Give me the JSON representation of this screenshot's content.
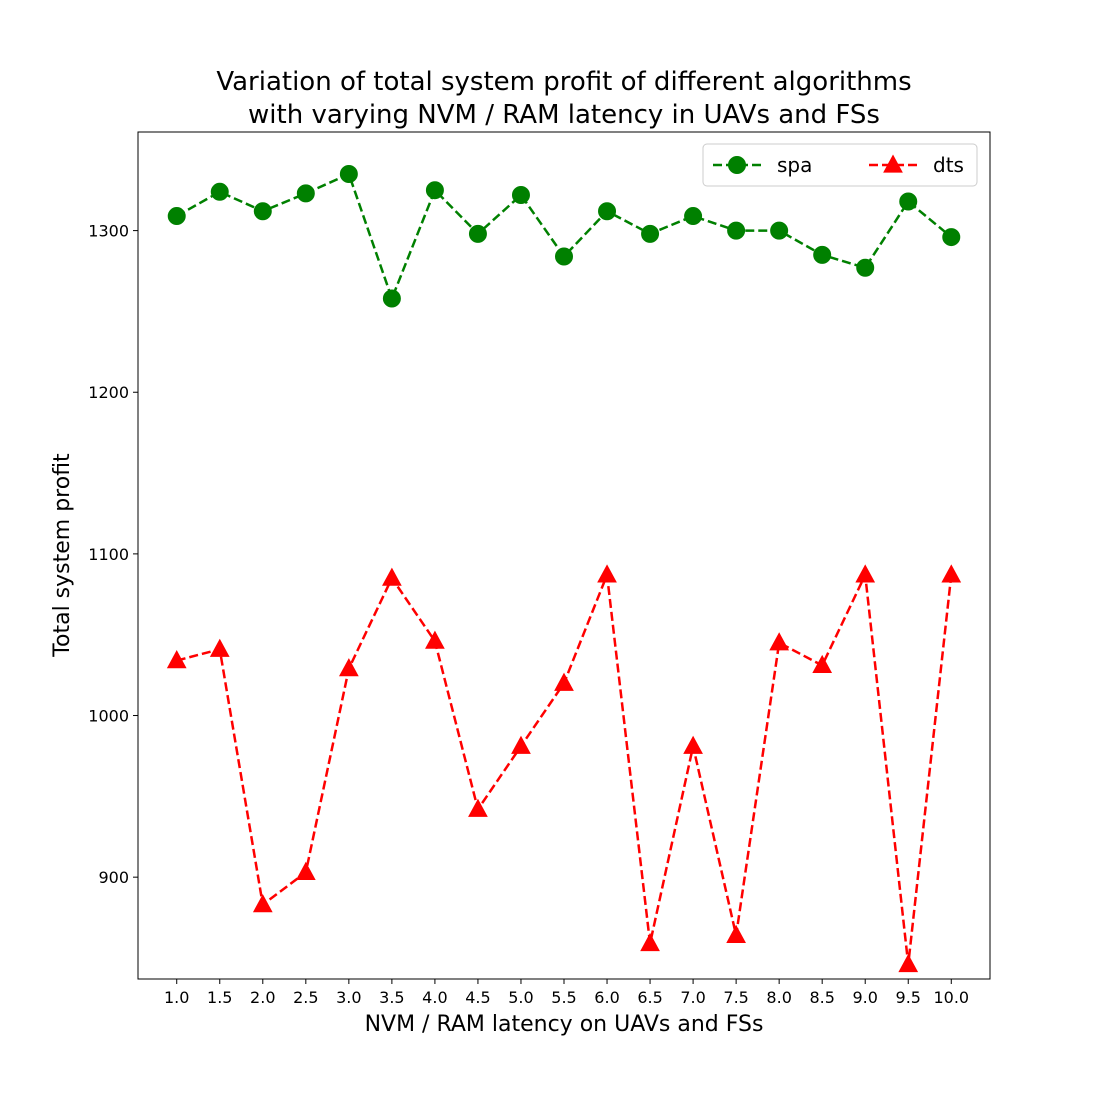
{
  "chart_data": {
    "type": "line",
    "title_lines": [
      "Variation of total system profit of different algorithms",
      "with varying NVM / RAM latency in UAVs and FSs"
    ],
    "xlabel": "NVM / RAM latency on UAVs and FSs",
    "ylabel": "Total system profit",
    "x": [
      1.0,
      1.5,
      2.0,
      2.5,
      3.0,
      3.5,
      4.0,
      4.5,
      5.0,
      5.5,
      6.0,
      6.5,
      7.0,
      7.5,
      8.0,
      8.5,
      9.0,
      9.5,
      10.0
    ],
    "x_tick_labels": [
      "1.0",
      "1.5",
      "2.0",
      "2.5",
      "3.0",
      "3.5",
      "4.0",
      "4.5",
      "5.0",
      "5.5",
      "6.0",
      "6.5",
      "7.0",
      "7.5",
      "8.0",
      "8.5",
      "9.0",
      "9.5",
      "10.0"
    ],
    "xlim": [
      0.55,
      10.45
    ],
    "ylim": [
      837,
      1361
    ],
    "y_ticks": [
      900,
      1000,
      1100,
      1200,
      1300
    ],
    "y_tick_labels": [
      "900",
      "1000",
      "1100",
      "1200",
      "1300"
    ],
    "grid": false,
    "legend": {
      "placement": "upper-right",
      "columns": 2
    },
    "series": [
      {
        "name": "spa",
        "color": "#008000",
        "marker": "circle",
        "line_style": "dashed",
        "values": [
          1309,
          1324,
          1312,
          1323,
          1335,
          1258,
          1325,
          1298,
          1322,
          1284,
          1312,
          1298,
          1309,
          1300,
          1300,
          1285,
          1277,
          1318,
          1296
        ]
      },
      {
        "name": "dts",
        "color": "#ff0000",
        "marker": "triangle",
        "line_style": "dashed",
        "values": [
          1034,
          1041,
          883,
          903,
          1029,
          1085,
          1046,
          942,
          981,
          1020,
          1087,
          859,
          981,
          864,
          1045,
          1031,
          1087,
          846,
          1087
        ]
      }
    ]
  }
}
